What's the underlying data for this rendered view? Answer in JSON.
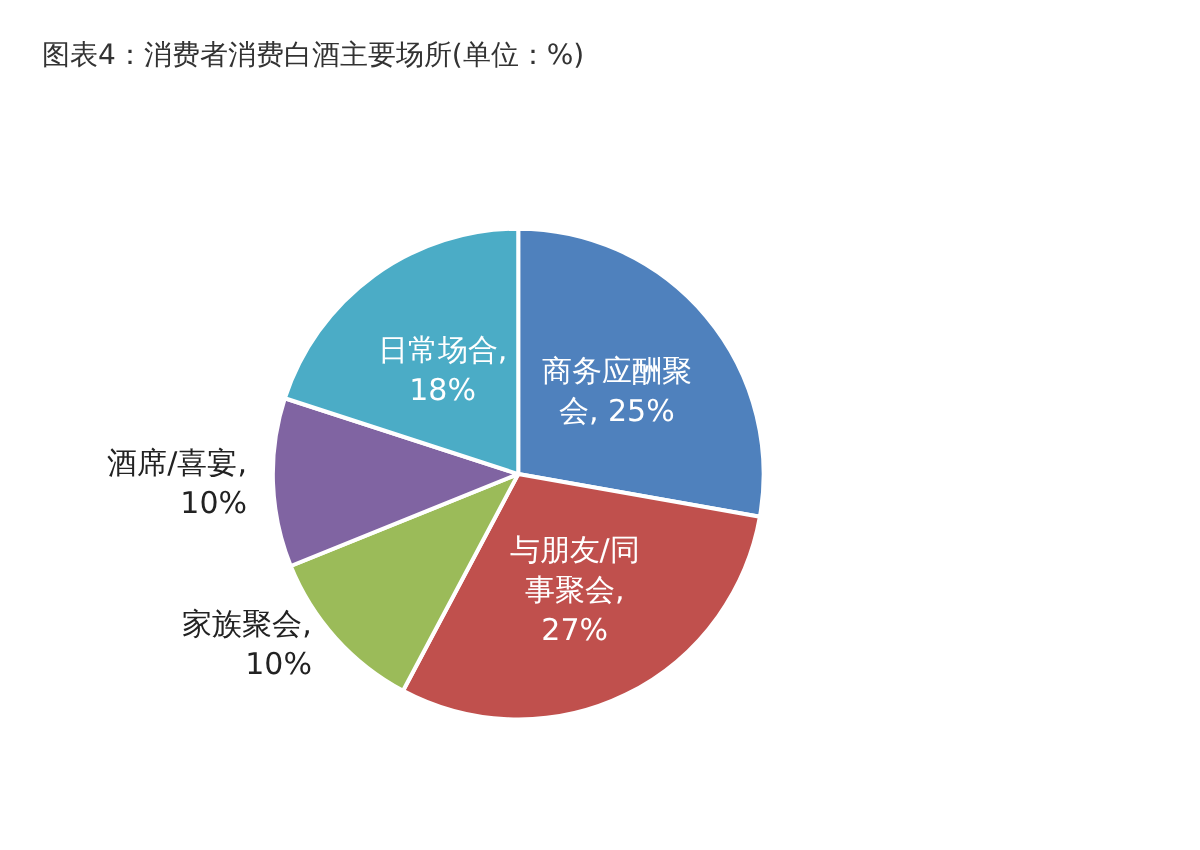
{
  "chart_data": {
    "type": "pie",
    "title": "图表4：消费者消费白酒主要场所(单位：%)",
    "categories": [
      "商务应酬聚会",
      "与朋友/同事聚会",
      "家族聚会",
      "酒席/喜宴",
      "日常场合"
    ],
    "values": [
      25,
      27,
      10,
      10,
      18
    ],
    "value_labels": [
      ", 25%",
      ", 27%",
      ", 10%",
      ", 10%",
      ", 18%"
    ],
    "colors": [
      "#4f81bd",
      "#c0504d",
      "#9bbb59",
      "#8064a2",
      "#4bacc6"
    ],
    "legend": false
  }
}
